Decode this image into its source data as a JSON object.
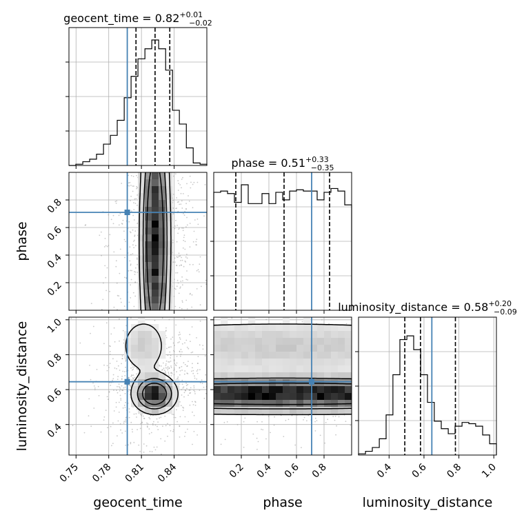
{
  "chart_data": {
    "type": "corner",
    "parameters": [
      "geocent_time",
      "phase",
      "luminosity_distance"
    ],
    "truth": {
      "geocent_time": 0.797,
      "phase": 0.71,
      "luminosity_distance": 0.645
    },
    "truth_color": "#4682b4",
    "ranges": {
      "geocent_time": [
        0.7435,
        0.87
      ],
      "phase": [
        0.0,
        1.0
      ],
      "luminosity_distance": [
        0.225,
        1.015
      ]
    },
    "ticks": {
      "geocent_time": [
        0.75,
        0.78,
        0.81,
        0.84
      ],
      "phase": [
        0.2,
        0.4,
        0.6,
        0.8
      ],
      "luminosity_distance": [
        0.4,
        0.6,
        0.8,
        1.0
      ]
    },
    "tick_labels": {
      "geocent_time": [
        "0.75",
        "0.78",
        "0.81",
        "0.84"
      ],
      "phase": [
        "0.2",
        "0.4",
        "0.6",
        "0.8"
      ],
      "luminosity_distance": [
        "0.4",
        "0.6",
        "0.8",
        "1.0"
      ]
    },
    "grid": true,
    "diagonal": [
      {
        "param": "geocent_time",
        "title_main": "geocent_time = 0.82",
        "title_sup": "+0.01",
        "title_sub": "−0.02",
        "quantiles": [
          0.805,
          0.8225,
          0.836
        ],
        "bin_edges": [
          0.7435,
          0.7498,
          0.7562,
          0.7625,
          0.7688,
          0.7752,
          0.7815,
          0.7878,
          0.7942,
          0.8005,
          0.8068,
          0.8132,
          0.8195,
          0.8258,
          0.8322,
          0.8385,
          0.8448,
          0.8512,
          0.8575,
          0.8638,
          0.87
        ],
        "counts": [
          0.0,
          0.01,
          0.03,
          0.05,
          0.09,
          0.17,
          0.24,
          0.36,
          0.54,
          0.71,
          0.85,
          0.93,
          1.0,
          0.93,
          0.76,
          0.44,
          0.33,
          0.14,
          0.02,
          0.01
        ]
      },
      {
        "param": "phase",
        "title_main": "phase = 0.51",
        "title_sup": "+0.33",
        "title_sub": "−0.35",
        "quantiles": [
          0.16,
          0.51,
          0.84
        ],
        "bin_edges": [
          0.0,
          0.05,
          0.1,
          0.15,
          0.2,
          0.25,
          0.3,
          0.35,
          0.4,
          0.45,
          0.5,
          0.55,
          0.6,
          0.65,
          0.7,
          0.75,
          0.8,
          0.85,
          0.9,
          0.95,
          1.0
        ],
        "counts": [
          0.94,
          0.95,
          0.93,
          0.86,
          1.0,
          0.85,
          0.85,
          0.93,
          0.85,
          0.94,
          0.88,
          0.95,
          0.96,
          0.95,
          0.95,
          0.88,
          0.94,
          0.97,
          0.95,
          0.84
        ]
      },
      {
        "param": "luminosity_distance",
        "title_main": "luminosity_distance = 0.58",
        "title_sup": "+0.20",
        "title_sub": "−0.09",
        "quantiles": [
          0.49,
          0.58,
          0.78
        ],
        "bin_edges": [
          0.225,
          0.265,
          0.304,
          0.344,
          0.383,
          0.422,
          0.462,
          0.502,
          0.541,
          0.581,
          0.62,
          0.659,
          0.699,
          0.739,
          0.778,
          0.818,
          0.857,
          0.896,
          0.936,
          0.976,
          1.015
        ],
        "counts": [
          0.01,
          0.03,
          0.06,
          0.13,
          0.32,
          0.64,
          0.92,
          0.95,
          0.84,
          0.64,
          0.42,
          0.27,
          0.21,
          0.17,
          0.23,
          0.26,
          0.25,
          0.23,
          0.16,
          0.09
        ]
      }
    ],
    "pairs": [
      {
        "x": "geocent_time",
        "y": "phase",
        "density_blobs": [
          {
            "cx": 0.8225,
            "cy": 0.5,
            "sx": 0.007,
            "sy": 0.55,
            "w": 1.0
          }
        ],
        "contour_levels": [
          0.55,
          0.3,
          0.12
        ],
        "scatter_center": [
          0.8225,
          0.5
        ],
        "scatter_spread": [
          0.022,
          0.5
        ]
      },
      {
        "x": "geocent_time",
        "y": "luminosity_distance",
        "density_blobs": [
          {
            "cx": 0.822,
            "cy": 0.575,
            "sx": 0.01,
            "sy": 0.055,
            "w": 1.0
          },
          {
            "cx": 0.812,
            "cy": 0.85,
            "sx": 0.013,
            "sy": 0.1,
            "w": 0.22
          }
        ],
        "contour_levels": [
          0.55,
          0.3,
          0.1
        ],
        "scatter_center": [
          0.82,
          0.65
        ],
        "scatter_spread": [
          0.022,
          0.17
        ]
      },
      {
        "x": "phase",
        "y": "luminosity_distance",
        "density_blobs": [
          {
            "cx": 0.5,
            "cy": 0.575,
            "sx": 1.2,
            "sy": 0.055,
            "w": 1.0
          },
          {
            "cx": 0.5,
            "cy": 0.85,
            "sx": 1.2,
            "sy": 0.1,
            "w": 0.22
          }
        ],
        "contour_levels": [
          0.55,
          0.3,
          0.1
        ],
        "scatter_center": [
          0.5,
          0.65
        ],
        "scatter_spread": [
          0.55,
          0.17
        ]
      }
    ]
  }
}
